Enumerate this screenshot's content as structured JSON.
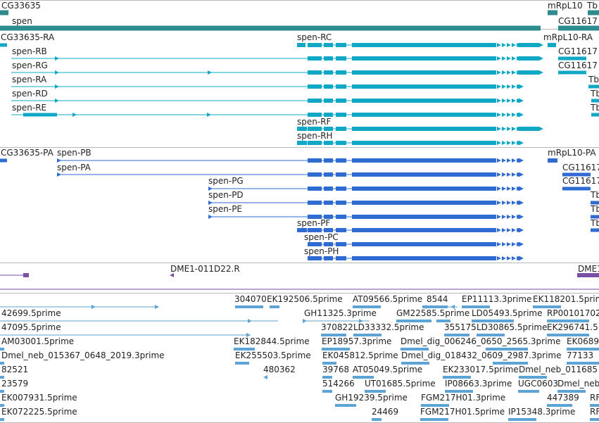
{
  "colors": {
    "gene": "#2e8c8f",
    "transcript": "#10a8c4",
    "protein": "#2f6bd1",
    "clone": "#7a4fa6",
    "est": "#5ea3d6",
    "separator": "#b8b8b8",
    "text": "#222222"
  },
  "labels": {
    "gene_cg33635": "CG33635",
    "gene_spen": "spen",
    "gene_mrpl10": "mRpL10",
    "gene_tb": "Tb",
    "gene_cg11617": "CG11617",
    "tx_cg33635_ra": "CG33635-RA",
    "tx_spen_rc": "spen-RC",
    "tx_mrpl10_ra": "mRpL10-RA",
    "tx_spen_rb": "spen-RB",
    "tx_cg11617_a": "CG11617",
    "tx_spen_rg": "spen-RG",
    "tx_cg11617_b": "CG11617",
    "tx_spen_ra": "spen-RA",
    "tx_tb_a": "Tb",
    "tx_spen_rd": "spen-RD",
    "tx_tb_b": "Tb",
    "tx_spen_re": "spen-RE",
    "tx_tb_c": "Tb",
    "tx_spen_rf": "spen-RF",
    "tx_spen_rh": "spen-RH",
    "pr_cg33635_pa": "CG33635-PA",
    "pr_spen_pb": "spen-PB",
    "pr_mrpl10_pa": "mRpL10-PA",
    "pr_spen_pa": "spen-PA",
    "pr_cg11617_a": "CG11617",
    "pr_spen_pg": "spen-PG",
    "pr_cg11617_b": "CG11617",
    "pr_spen_pd": "spen-PD",
    "pr_tb_a": "Tb",
    "pr_spen_pe": "spen-PE",
    "pr_tb_b": "Tb",
    "pr_spen_pf": "spen-PF",
    "pr_tb_c": "Tb",
    "pr_spen_pc": "spen-PC",
    "pr_spen_ph": "spen-PH",
    "clone_dme1": "DME1-011D22.R",
    "clone_dme1_b": "DME1",
    "est_304070": "304070",
    "est_ek192506": "EK192506.5prime",
    "est_at09566": "AT09566.5prime",
    "est_8544": "8544",
    "est_ep11113": "EP11113.3prime",
    "est_ek118201": "EK118201.5prime",
    "est_42699": "42699.5prime",
    "est_gh11325": "GH11325.3prime",
    "est_gm22585": "GM22585.5prime",
    "est_ld05493": "LD05493.5prime",
    "est_rp00101702": "RP00101702",
    "est_47095": "47095.5prime",
    "est_370822": "370822",
    "est_ld33332": "LD33332.5prime",
    "est_355175": "355175",
    "est_ld30865": "LD30865.5prime",
    "est_ek296741": "EK296741.5",
    "est_am03001": "AM03001.5prime",
    "est_ek182844": "EK182844.5prime",
    "est_ep18957": "EP18957.3prime",
    "est_dmel_dig_006246": "Dmel_dig_006246_0650_2565.3prime",
    "est_ek0689": "EK0689",
    "est_dmel_neb_015367": "Dmel_neb_015367_0648_2019.3prime",
    "est_ek255503": "EK255503.5prime",
    "est_ek045812": "EK045812.5prime",
    "est_dmel_dig_018432": "Dmel_dig_018432_0609_2987.3prime",
    "est_77133": "77133",
    "est_82521": "82521",
    "est_480362": "480362",
    "est_39768": "39768",
    "est_at05049": "AT05049.5prime",
    "est_ek233017": "EK233017.5prime",
    "est_dmel_neb_011685": "Dmel_neb_011685",
    "est_23579": "23579",
    "est_514266": "514266",
    "est_ut01685": "UT01685.5prime",
    "est_ip08663": "IP08663.3prime",
    "est_ugc0603": "UGC0603",
    "est_dmel_neb_b": "Dmel_neb_",
    "est_ek007931": "EK007931.5prime",
    "est_gh19239": "GH19239.5prime",
    "est_fgm217h01_3": "FGM217H01.3prime",
    "est_447389": "447389",
    "est_rf_a": "RF",
    "est_ek072225": "EK072225.5prime",
    "est_24469": "24469",
    "est_fgm217h01_5": "FGM217H01.5prime",
    "est_ip15348": "IP15348.3prime",
    "est_rf_b": "RF"
  }
}
